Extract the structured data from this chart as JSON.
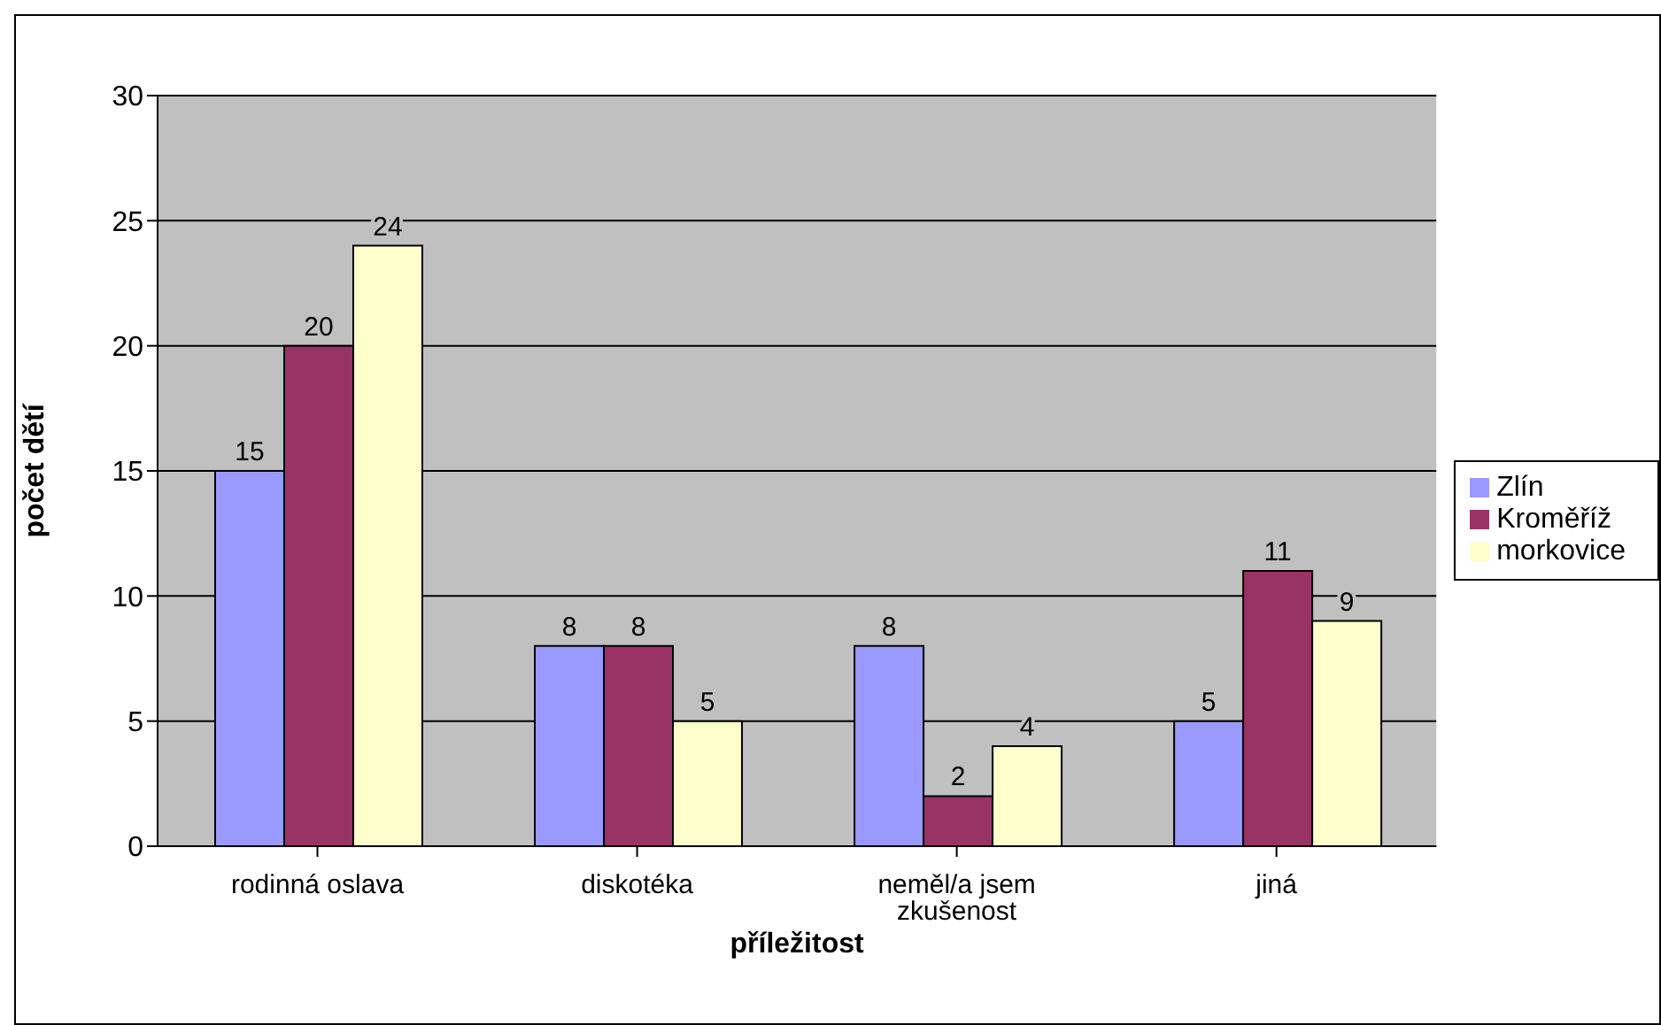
{
  "chart_data": {
    "type": "bar",
    "xlabel": "příležitost",
    "ylabel": "počet dětí",
    "categories": [
      "rodinná oslava",
      "diskotéka",
      "neměl/a jsem zkušenost",
      "jiná"
    ],
    "series": [
      {
        "name": "Zlín",
        "color": "#9999ff",
        "values": [
          15,
          8,
          8,
          5
        ]
      },
      {
        "name": "Kroměříž",
        "color": "#993366",
        "values": [
          20,
          8,
          2,
          11
        ]
      },
      {
        "name": "morkovice",
        "color": "#ffffcc",
        "values": [
          24,
          5,
          4,
          9
        ]
      }
    ],
    "ylim": [
      0,
      30
    ],
    "yticks": [
      0,
      5,
      10,
      15,
      20,
      25,
      30
    ],
    "grid": "y",
    "legend": "right",
    "data_labels": true
  }
}
